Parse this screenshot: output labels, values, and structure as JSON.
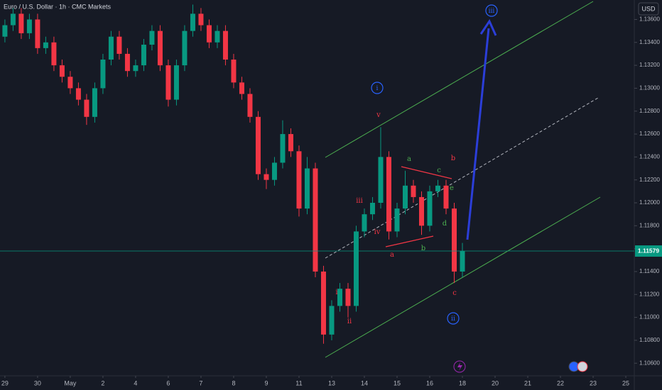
{
  "chart_data": {
    "type": "candlestick",
    "title": "Euro / U.S. Dollar · 1h · CMC Markets",
    "currency": "USD",
    "background": "#161a25",
    "up_color": "#089981",
    "down_color": "#f23645",
    "last_price": 1.11579,
    "xlim": [
      -0.15,
      19.26
    ],
    "xticks": [
      {
        "value": 0,
        "label": "29"
      },
      {
        "value": 1,
        "label": "30"
      },
      {
        "value": 2,
        "label": "May"
      },
      {
        "value": 3,
        "label": "2"
      },
      {
        "value": 4,
        "label": "4"
      },
      {
        "value": 5,
        "label": "6"
      },
      {
        "value": 6,
        "label": "7"
      },
      {
        "value": 7,
        "label": "8"
      },
      {
        "value": 8,
        "label": "9"
      },
      {
        "value": 9,
        "label": "11"
      },
      {
        "value": 10,
        "label": "13"
      },
      {
        "value": 11,
        "label": "14"
      },
      {
        "value": 12,
        "label": "15"
      },
      {
        "value": 13,
        "label": "16"
      },
      {
        "value": 14,
        "label": "18"
      },
      {
        "value": 15,
        "label": "20"
      },
      {
        "value": 16,
        "label": "21"
      },
      {
        "value": 17,
        "label": "22"
      },
      {
        "value": 18,
        "label": "23"
      },
      {
        "value": 19,
        "label": "25"
      }
    ],
    "ylim": [
      1.1049,
      1.1377
    ],
    "yticks": [
      {
        "value": 1.106,
        "label": "1.10600"
      },
      {
        "value": 1.108,
        "label": "1.10800"
      },
      {
        "value": 1.11,
        "label": "1.11000"
      },
      {
        "value": 1.112,
        "label": "1.11200"
      },
      {
        "value": 1.114,
        "label": "1.11400"
      },
      {
        "value": 1.116,
        "label": "1.11600"
      },
      {
        "value": 1.118,
        "label": "1.11800"
      },
      {
        "value": 1.12,
        "label": "1.12000"
      },
      {
        "value": 1.122,
        "label": "1.12200"
      },
      {
        "value": 1.124,
        "label": "1.12400"
      },
      {
        "value": 1.126,
        "label": "1.12600"
      },
      {
        "value": 1.128,
        "label": "1.12800"
      },
      {
        "value": 1.13,
        "label": "1.13000"
      },
      {
        "value": 1.132,
        "label": "1.13200"
      },
      {
        "value": 1.134,
        "label": "1.13400"
      },
      {
        "value": 1.136,
        "label": "1.13600"
      }
    ],
    "grid": false,
    "x": [
      0,
      0.25,
      0.5,
      0.75,
      1,
      1.25,
      1.5,
      1.75,
      2,
      2.25,
      2.5,
      2.75,
      3,
      3.25,
      3.5,
      3.75,
      4,
      4.25,
      4.5,
      4.75,
      5,
      5.25,
      5.5,
      5.75,
      6,
      6.25,
      6.5,
      6.75,
      7,
      7.25,
      7.5,
      7.75,
      8,
      8.25,
      8.5,
      8.75,
      9,
      9.25,
      9.5,
      9.75,
      10,
      10.25,
      10.5,
      10.75,
      11,
      11.25,
      11.5,
      11.75,
      12,
      12.25,
      12.5,
      12.75,
      13,
      13.25,
      13.5,
      13.75,
      14
    ],
    "open": [
      1.1345,
      1.1355,
      1.1365,
      1.1348,
      1.136,
      1.1335,
      1.134,
      1.132,
      1.131,
      1.13,
      1.129,
      1.1275,
      1.13,
      1.1325,
      1.1345,
      1.133,
      1.1315,
      1.132,
      1.1338,
      1.135,
      1.132,
      1.129,
      1.132,
      1.135,
      1.1365,
      1.1355,
      1.134,
      1.135,
      1.1325,
      1.1305,
      1.1295,
      1.1275,
      1.1225,
      1.122,
      1.1235,
      1.126,
      1.1245,
      1.1195,
      1.123,
      1.114,
      1.1085,
      1.111,
      1.1125,
      1.111,
      1.1175,
      1.119,
      1.12,
      1.124,
      1.1175,
      1.1195,
      1.1215,
      1.1205,
      1.118,
      1.121,
      1.1215,
      1.1195,
      1.114
    ],
    "high": [
      1.136,
      1.137,
      1.137,
      1.1365,
      1.1365,
      1.1345,
      1.1345,
      1.1325,
      1.1315,
      1.1305,
      1.1295,
      1.1305,
      1.133,
      1.135,
      1.135,
      1.1335,
      1.1325,
      1.1343,
      1.1355,
      1.1355,
      1.1325,
      1.1325,
      1.1355,
      1.1373,
      1.137,
      1.136,
      1.1355,
      1.1355,
      1.133,
      1.131,
      1.13,
      1.128,
      1.123,
      1.124,
      1.1272,
      1.1265,
      1.125,
      1.124,
      1.1235,
      1.1145,
      1.1115,
      1.113,
      1.113,
      1.118,
      1.1195,
      1.1205,
      1.1266,
      1.1245,
      1.12,
      1.1228,
      1.122,
      1.121,
      1.1215,
      1.122,
      1.122,
      1.12,
      1.1165
    ],
    "low": [
      1.134,
      1.135,
      1.1343,
      1.1343,
      1.133,
      1.133,
      1.1315,
      1.1305,
      1.1295,
      1.1285,
      1.1268,
      1.127,
      1.1295,
      1.132,
      1.1325,
      1.131,
      1.131,
      1.1315,
      1.1333,
      1.1315,
      1.1284,
      1.1285,
      1.1315,
      1.1345,
      1.135,
      1.1335,
      1.1335,
      1.132,
      1.13,
      1.129,
      1.127,
      1.122,
      1.1212,
      1.1215,
      1.123,
      1.124,
      1.1188,
      1.119,
      1.1135,
      1.1077,
      1.108,
      1.1105,
      1.11,
      1.1105,
      1.117,
      1.1185,
      1.1195,
      1.1168,
      1.117,
      1.119,
      1.12,
      1.1172,
      1.1175,
      1.1205,
      1.119,
      1.113,
      1.1135
    ],
    "close": [
      1.1355,
      1.1365,
      1.1348,
      1.136,
      1.1335,
      1.134,
      1.132,
      1.131,
      1.13,
      1.129,
      1.1275,
      1.13,
      1.1325,
      1.1345,
      1.133,
      1.1315,
      1.132,
      1.1338,
      1.135,
      1.132,
      1.129,
      1.132,
      1.135,
      1.1365,
      1.1355,
      1.134,
      1.135,
      1.1325,
      1.1305,
      1.1295,
      1.1275,
      1.1225,
      1.122,
      1.1235,
      1.126,
      1.1245,
      1.1195,
      1.123,
      1.114,
      1.1085,
      1.111,
      1.1125,
      1.111,
      1.1175,
      1.119,
      1.12,
      1.124,
      1.1175,
      1.1195,
      1.1215,
      1.1205,
      1.118,
      1.121,
      1.1215,
      1.1195,
      1.114,
      1.11579
    ],
    "annotations": [
      {
        "text": "i",
        "color": "#2962ff",
        "circled": true
      },
      {
        "text": "v",
        "color": "#f23645"
      },
      {
        "text": "a",
        "color": "#4caf50"
      },
      {
        "text": "b",
        "color": "#f23645"
      },
      {
        "text": "c",
        "color": "#4caf50"
      },
      {
        "text": "e",
        "color": "#4caf50"
      },
      {
        "text": "iii",
        "color": "#f23645"
      },
      {
        "text": "iv",
        "color": "#f23645"
      },
      {
        "text": "d",
        "color": "#4caf50"
      },
      {
        "text": "a",
        "color": "#f23645"
      },
      {
        "text": "b",
        "color": "#4caf50"
      },
      {
        "text": "c",
        "color": "#f23645"
      },
      {
        "text": "ii",
        "color": "#2962ff",
        "circled": true
      },
      {
        "text": "i",
        "color": "#f23645"
      },
      {
        "text": "ii",
        "color": "#f23645"
      },
      {
        "text": "iii",
        "color": "#2962ff",
        "circled": true
      }
    ]
  }
}
